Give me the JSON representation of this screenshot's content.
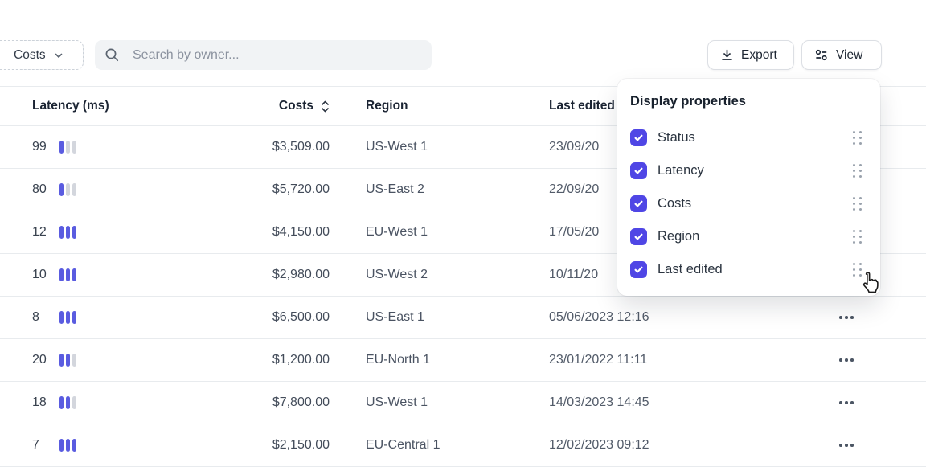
{
  "toolbar": {
    "filter_chip": {
      "label": "Costs"
    },
    "search": {
      "placeholder": "Search by owner..."
    },
    "export_button": {
      "label": "Export"
    },
    "view_button": {
      "label": "View"
    }
  },
  "table": {
    "headers": {
      "latency": "Latency (ms)",
      "costs": "Costs",
      "region": "Region",
      "last_edited": "Last edited"
    },
    "bars_total": 3,
    "rows": [
      {
        "latency": "99",
        "bars_active": 1,
        "costs": "$3,509.00",
        "region": "US-West 1",
        "last_edited": "23/09/20"
      },
      {
        "latency": "80",
        "bars_active": 1,
        "costs": "$5,720.00",
        "region": "US-East 2",
        "last_edited": "22/09/20"
      },
      {
        "latency": "12",
        "bars_active": 3,
        "costs": "$4,150.00",
        "region": "EU-West 1",
        "last_edited": "17/05/20"
      },
      {
        "latency": "10",
        "bars_active": 3,
        "costs": "$2,980.00",
        "region": "US-West 2",
        "last_edited": "10/11/20"
      },
      {
        "latency": "8",
        "bars_active": 3,
        "costs": "$6,500.00",
        "region": "US-East 1",
        "last_edited": "05/06/2023 12:16"
      },
      {
        "latency": "20",
        "bars_active": 2,
        "costs": "$1,200.00",
        "region": "EU-North 1",
        "last_edited": "23/01/2022 11:11"
      },
      {
        "latency": "18",
        "bars_active": 2,
        "costs": "$7,800.00",
        "region": "US-West 1",
        "last_edited": "14/03/2023 14:45"
      },
      {
        "latency": "7",
        "bars_active": 3,
        "costs": "$2,150.00",
        "region": "EU-Central 1",
        "last_edited": "12/02/2023 09:12"
      }
    ]
  },
  "display_panel": {
    "title": "Display properties",
    "items": [
      {
        "label": "Status",
        "checked": true
      },
      {
        "label": "Latency",
        "checked": true
      },
      {
        "label": "Costs",
        "checked": true
      },
      {
        "label": "Region",
        "checked": true
      },
      {
        "label": "Last edited",
        "checked": true
      }
    ]
  },
  "colors": {
    "accent": "#4f46e5",
    "bar_active": "#5a5ce0",
    "bar_inactive": "#d3d6dd",
    "border": "#e8ebee"
  }
}
